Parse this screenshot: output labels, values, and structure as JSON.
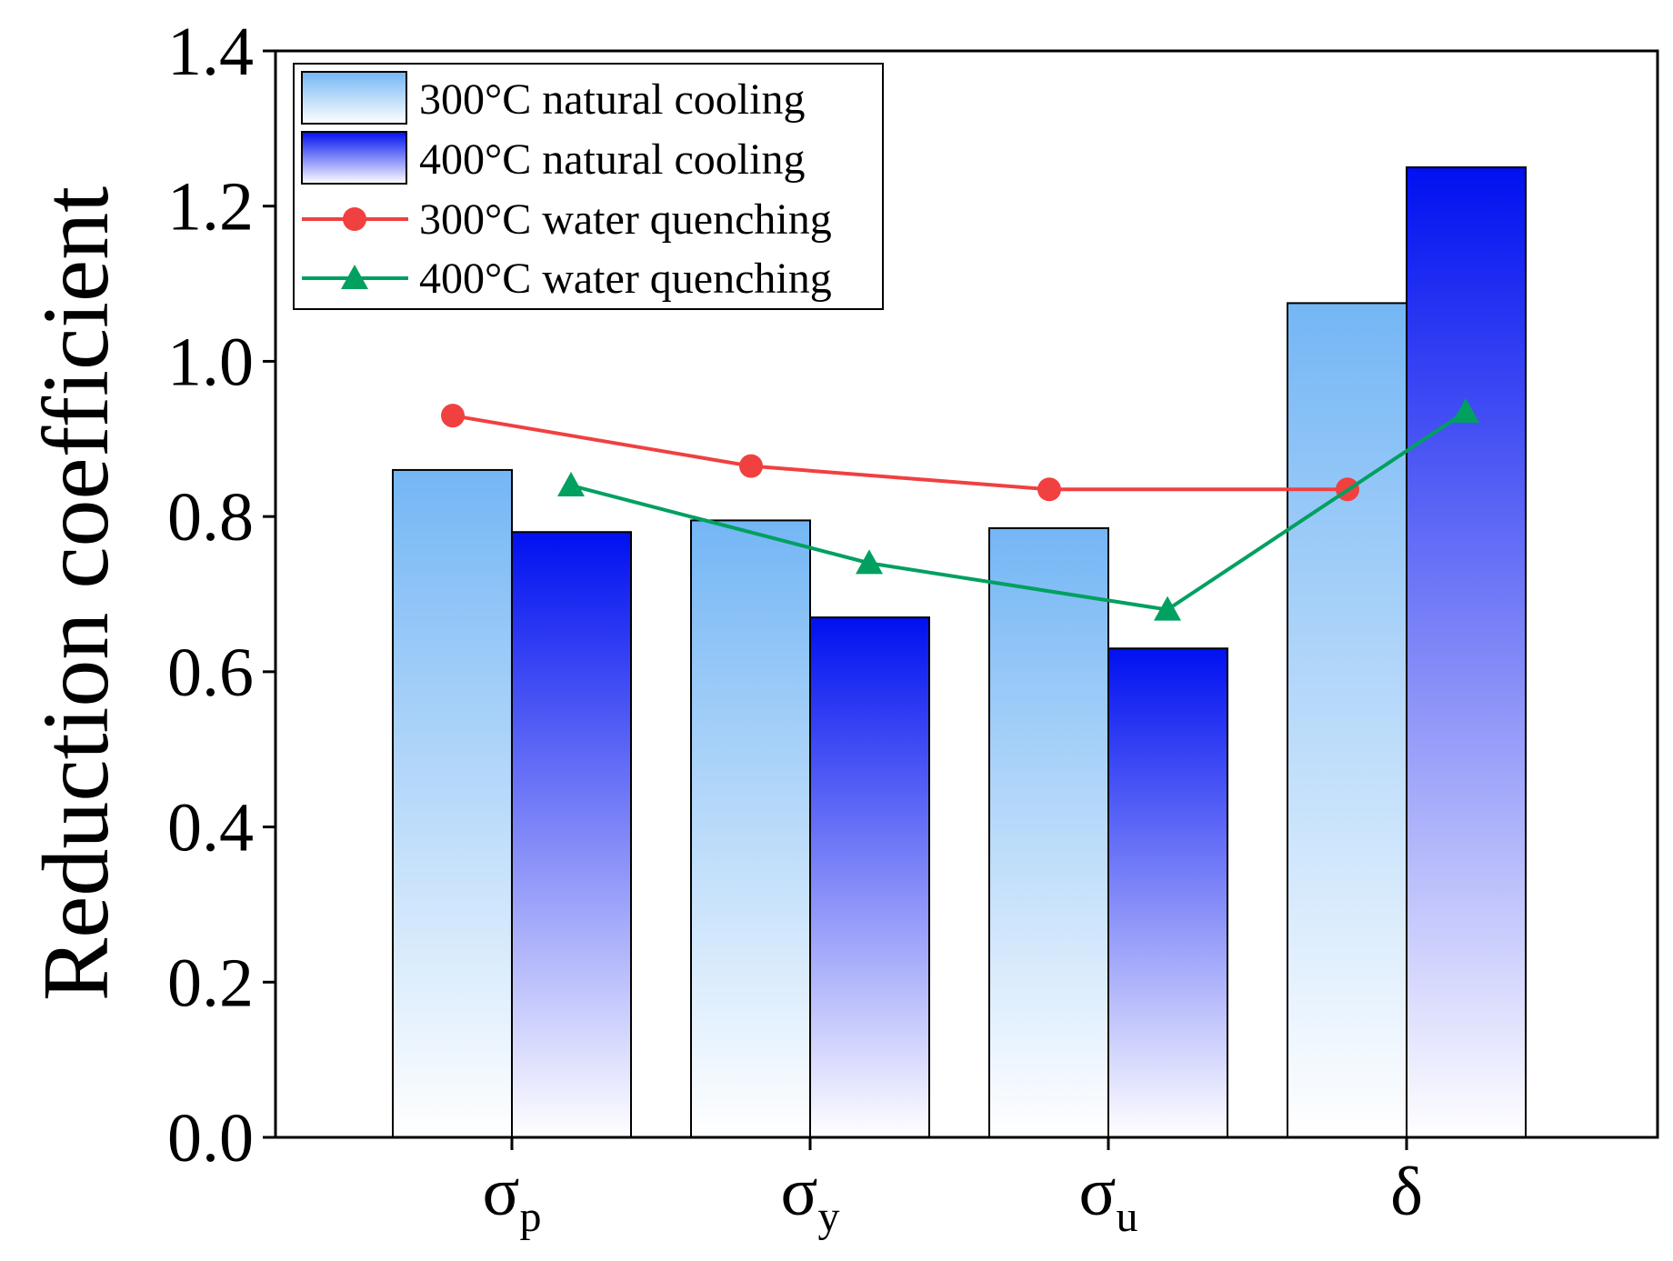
{
  "chart_data": {
    "type": "bar",
    "title": "",
    "xlabel": "",
    "ylabel": "Reduction coefficient",
    "ylim": [
      0,
      1.4
    ],
    "yticks": [
      "0.0",
      "0.2",
      "0.4",
      "0.6",
      "0.8",
      "1.0",
      "1.2",
      "1.4"
    ],
    "categories": [
      {
        "main": "σ",
        "sub": "p"
      },
      {
        "main": "σ",
        "sub": "y"
      },
      {
        "main": "σ",
        "sub": "u"
      },
      {
        "main": "δ",
        "sub": ""
      }
    ],
    "bar_series": [
      {
        "name": "300°C natural cooling",
        "values": [
          0.86,
          0.795,
          0.785,
          1.075
        ],
        "color_top": "#74b6f5",
        "color_bottom": "#ffffff"
      },
      {
        "name": "400°C natural cooling",
        "values": [
          0.78,
          0.67,
          0.63,
          1.25
        ],
        "color_top": "#0010f0",
        "color_bottom": "#ffffff"
      }
    ],
    "line_series": [
      {
        "name": "300°C water quenching",
        "values": [
          0.93,
          0.865,
          0.835,
          0.835
        ],
        "color": "#f04040",
        "marker": "circle"
      },
      {
        "name": "400°C water quenching",
        "values": [
          0.84,
          0.74,
          0.68,
          0.935
        ],
        "color": "#00a060",
        "marker": "triangle"
      }
    ],
    "legend": "top-left",
    "grid": false
  }
}
